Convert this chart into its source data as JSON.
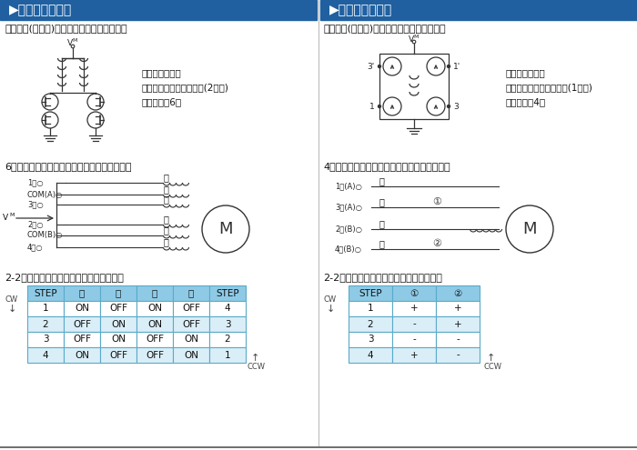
{
  "title_left": "▶ユニポーラ駆動",
  "title_right": "▶バイポーラ駆動",
  "title_bg": "#2060a0",
  "header_bg": "#8ecae6",
  "row_bg_alt": "#daeef8",
  "row_bg_white": "#ffffff",
  "border_color": "#5aaac8",
  "subtitle_left": "基本回路(定電圧)は下図のようになります。",
  "subtitle_right": "基本回路(定電圧)は下図のようになります。",
  "spec_left": [
    "電　流：一方向",
    "コイル：バイファイラ巻(2本巻)",
    "リード線：6本"
  ],
  "spec_right": [
    "電　流：双方向",
    "コイル：モノファイラ巻(1本巻)",
    "リード線：4本"
  ],
  "wiring_left": "6本のリード線は下図のように結線されます。",
  "wiring_right": "4本のリード線は下図のように結線されます。",
  "seq_left": "2-2相の励磁シーケンスは次の通りです。",
  "seq_right": "2-2相の励磁シーケンスは次の通りです。",
  "table_left_headers": [
    "STEP",
    "黒",
    "茶",
    "橙",
    "黄",
    "STEP"
  ],
  "table_left_rows": [
    [
      "1",
      "ON",
      "OFF",
      "ON",
      "OFF",
      "4"
    ],
    [
      "2",
      "OFF",
      "ON",
      "ON",
      "OFF",
      "3"
    ],
    [
      "3",
      "OFF",
      "ON",
      "OFF",
      "ON",
      "2"
    ],
    [
      "4",
      "ON",
      "OFF",
      "OFF",
      "ON",
      "1"
    ]
  ],
  "table_right_headers": [
    "STEP",
    "①",
    "②"
  ],
  "table_right_rows": [
    [
      "1",
      "+",
      "+"
    ],
    [
      "2",
      "-",
      "+"
    ],
    [
      "3",
      "-",
      "-"
    ],
    [
      "4",
      "+",
      "-"
    ]
  ],
  "wire_labels_left": [
    "黒",
    "赤",
    "茶",
    "橙",
    "赤",
    "黄"
  ],
  "pin_labels_left": [
    "1相",
    "COM(A)",
    "3相",
    "2相",
    "COM(B)",
    "4相"
  ],
  "wire_labels_right": [
    "茶",
    "橙",
    "赤",
    "黄"
  ],
  "pin_labels_right": [
    "1相(A)",
    "3相(A)",
    "2相(B)",
    "4相(B)"
  ],
  "bg_color": "#ffffff"
}
